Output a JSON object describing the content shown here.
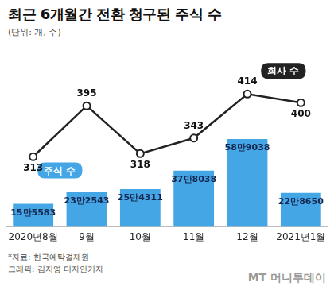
{
  "chart_data": {
    "type": "bar",
    "title": "최근 6개월간 전환 청구된 주식 수",
    "subtitle": "(단위: 개, 주)",
    "source": "*자료: 한국예탁결제원",
    "credit": "그래픽: 김지영 디자인기자",
    "logo": "MT 머니투데이",
    "categories": [
      "2020년8월",
      "9월",
      "10월",
      "11월",
      "12월",
      "2021년1월"
    ],
    "series": [
      {
        "name": "주식 수",
        "type": "bar",
        "color": "#45a6e6",
        "values": [
          155583,
          232543,
          254311,
          378038,
          589038,
          228650
        ],
        "value_labels": [
          "15만5583",
          "23만2543",
          "25만4311",
          "37만8038",
          "58만9038",
          "22만8650"
        ]
      },
      {
        "name": "회사 수",
        "type": "line",
        "color": "#222222",
        "marker": "circle",
        "axis": "y2",
        "values": [
          313,
          395,
          318,
          343,
          414,
          400
        ]
      }
    ],
    "ylim": [
      0,
      1000000
    ],
    "y2lim": [
      200,
      440
    ],
    "grid": false,
    "data_labels": true,
    "tick_labels": "x"
  }
}
